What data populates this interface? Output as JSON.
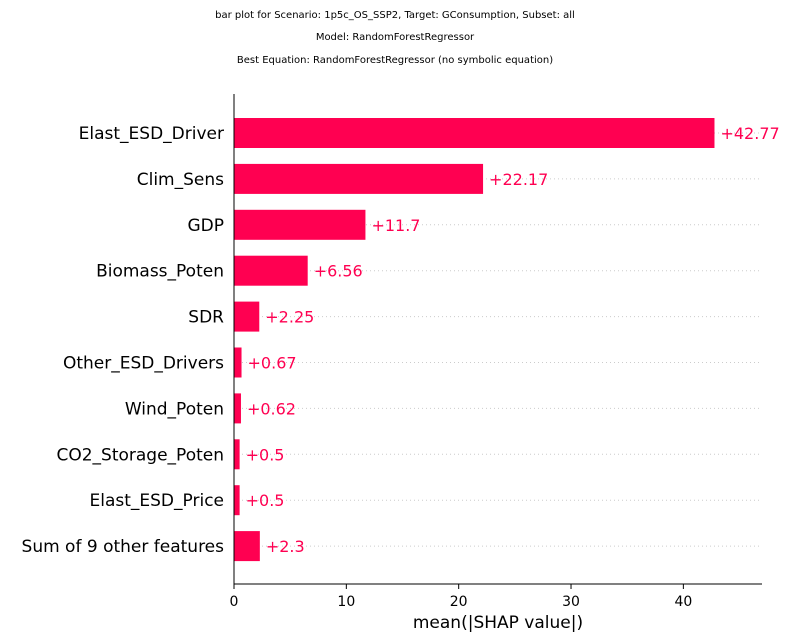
{
  "titles": {
    "line1": "bar plot for Scenario: 1p5c_OS_SSP2, Target: GConsumption, Subset: all",
    "line2": "Model: RandomForestRegressor",
    "line3": "Best Equation: RandomForestRegressor (no symbolic equation)"
  },
  "colors": {
    "bar": "#ff0051",
    "label": "#ff0051",
    "axis": "#000000",
    "grid": "#cccccc"
  },
  "chart_data": {
    "type": "bar",
    "orientation": "horizontal",
    "categories": [
      "Elast_ESD_Driver",
      "Clim_Sens",
      "GDP",
      "Biomass_Poten",
      "SDR",
      "Other_ESD_Drivers",
      "Wind_Poten",
      "CO2_Storage_Poten",
      "Elast_ESD_Price",
      "Sum of 9 other features"
    ],
    "values": [
      42.77,
      22.17,
      11.7,
      6.56,
      2.25,
      0.67,
      0.62,
      0.5,
      0.5,
      2.3
    ],
    "value_labels": [
      "+42.77",
      "+22.17",
      "+11.7",
      "+6.56",
      "+2.25",
      "+0.67",
      "+0.62",
      "+0.5",
      "+0.5",
      "+2.3"
    ],
    "xlabel": "mean(|SHAP value|)",
    "ylabel": "",
    "xlim": [
      0,
      47
    ],
    "xticks": [
      0,
      10,
      20,
      30,
      40
    ],
    "grid": "dotted horizontal lines per row"
  }
}
